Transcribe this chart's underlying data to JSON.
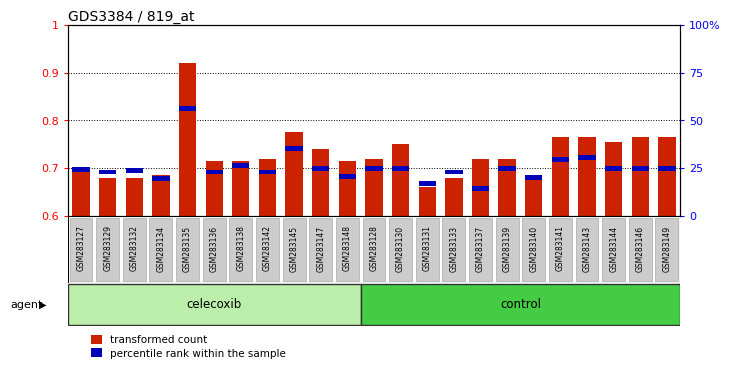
{
  "title": "GDS3384 / 819_at",
  "samples": [
    "GSM283127",
    "GSM283129",
    "GSM283132",
    "GSM283134",
    "GSM283135",
    "GSM283136",
    "GSM283138",
    "GSM283142",
    "GSM283145",
    "GSM283147",
    "GSM283148",
    "GSM283128",
    "GSM283130",
    "GSM283131",
    "GSM283133",
    "GSM283137",
    "GSM283139",
    "GSM283140",
    "GSM283141",
    "GSM283143",
    "GSM283144",
    "GSM283146",
    "GSM283149"
  ],
  "red_values": [
    0.692,
    0.68,
    0.68,
    0.685,
    0.92,
    0.715,
    0.715,
    0.72,
    0.775,
    0.74,
    0.715,
    0.72,
    0.75,
    0.66,
    0.68,
    0.72,
    0.72,
    0.685,
    0.765,
    0.765,
    0.755,
    0.765,
    0.765
  ],
  "blue_values": [
    0.698,
    0.692,
    0.695,
    0.678,
    0.825,
    0.692,
    0.705,
    0.692,
    0.742,
    0.7,
    0.683,
    0.7,
    0.7,
    0.668,
    0.692,
    0.658,
    0.7,
    0.68,
    0.718,
    0.722,
    0.7,
    0.7,
    0.7
  ],
  "celecoxib_count": 11,
  "control_count": 12,
  "ylim_min": 0.6,
  "ylim_max": 1.0,
  "yticks_left": [
    0.6,
    0.7,
    0.8,
    0.9,
    1.0
  ],
  "ytick_labels_left": [
    "0.6",
    "0.7",
    "0.8",
    "0.9",
    "1"
  ],
  "yticks_right_vals": [
    0,
    25,
    50,
    75,
    100
  ],
  "ytick_labels_right": [
    "0",
    "25",
    "50",
    "75",
    "100%"
  ],
  "bar_color": "#cc2200",
  "blue_color": "#0000bb",
  "bg_color": "#ffffff",
  "tick_bg_color": "#cccccc",
  "celecoxib_color": "#aaeea a",
  "control_color": "#55dd55",
  "legend_red": "transformed count",
  "legend_blue": "percentile rank within the sample",
  "agent_label": "agent",
  "grid_yvals": [
    0.7,
    0.8,
    0.9
  ]
}
